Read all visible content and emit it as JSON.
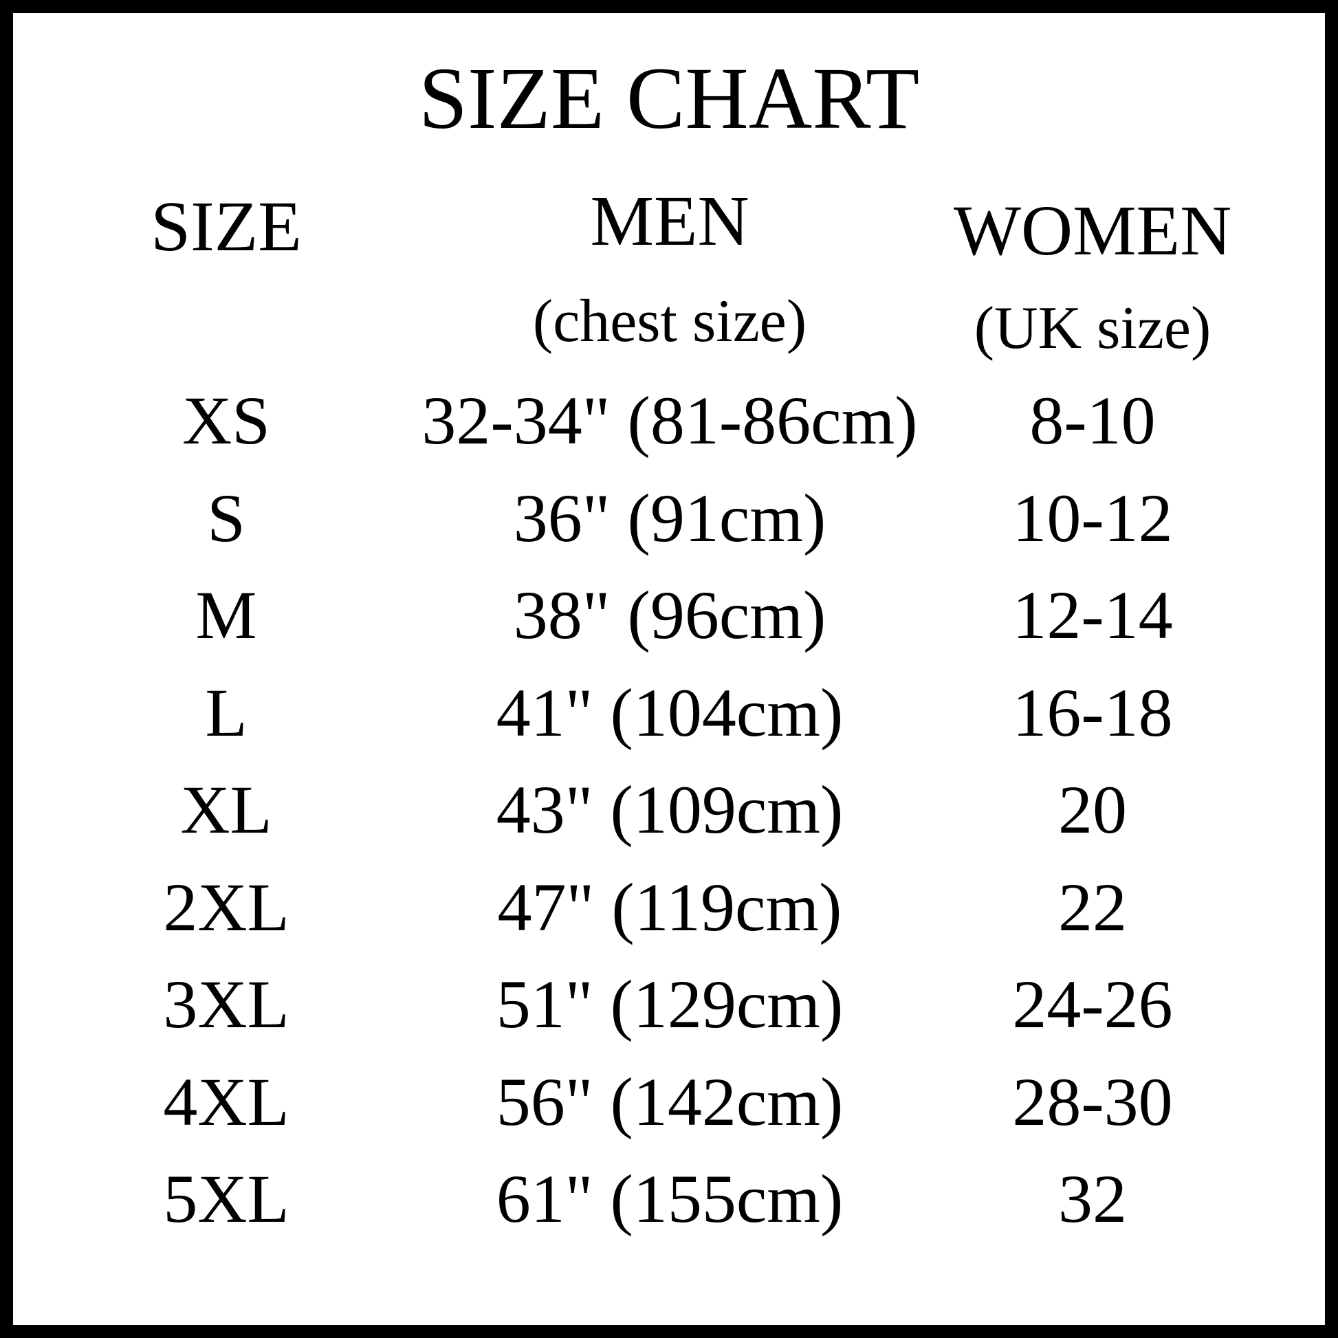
{
  "title": "SIZE CHART",
  "headers": {
    "size": "SIZE",
    "men": "MEN",
    "men_sub": "(chest size)",
    "women": "WOMEN",
    "women_sub": "(UK size)"
  },
  "rows": [
    {
      "size": "XS",
      "men": "32-34\" (81-86cm)",
      "women": "8-10"
    },
    {
      "size": "S",
      "men": "36\" (91cm)",
      "women": "10-12"
    },
    {
      "size": "M",
      "men": "38\" (96cm)",
      "women": "12-14"
    },
    {
      "size": "L",
      "men": "41\" (104cm)",
      "women": "16-18"
    },
    {
      "size": "XL",
      "men": "43\" (109cm)",
      "women": "20"
    },
    {
      "size": "2XL",
      "men": "47\" (119cm)",
      "women": "22"
    },
    {
      "size": "3XL",
      "men": "51\" (129cm)",
      "women": "24-26"
    },
    {
      "size": "4XL",
      "men": "56\" (142cm)",
      "women": "28-30"
    },
    {
      "size": "5XL",
      "men": "61\" (155cm)",
      "women": "32"
    }
  ]
}
